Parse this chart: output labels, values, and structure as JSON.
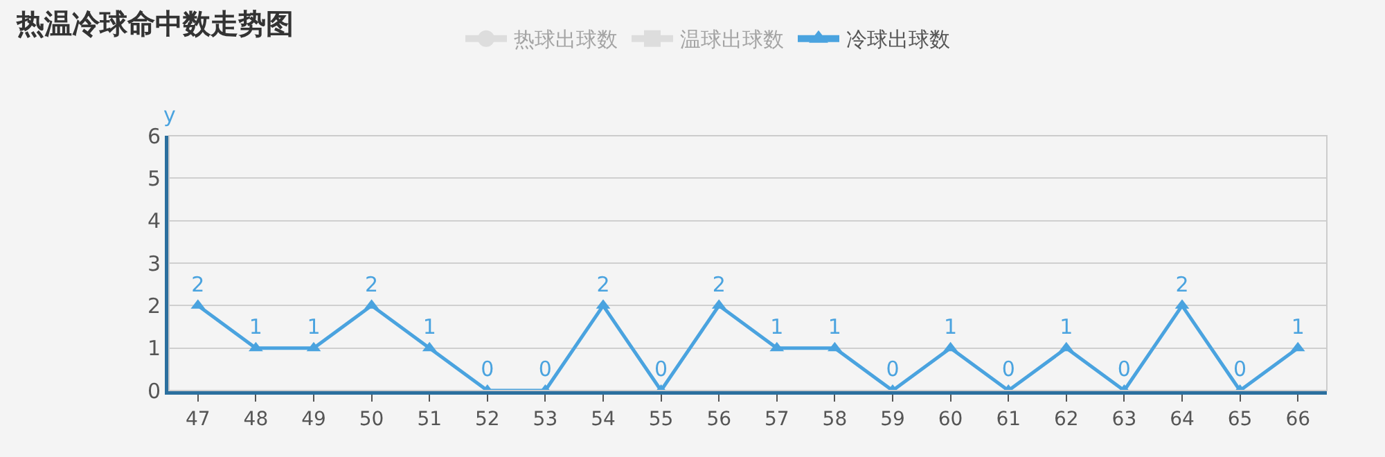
{
  "chart_data": {
    "type": "line",
    "title": "热温冷球命中数走势图",
    "ylabel": "y",
    "categories": [
      "47",
      "48",
      "49",
      "50",
      "51",
      "52",
      "53",
      "54",
      "55",
      "56",
      "57",
      "58",
      "59",
      "60",
      "61",
      "62",
      "63",
      "64",
      "65",
      "66"
    ],
    "series": [
      {
        "name": "热球出球数",
        "color": "#c8c8c8",
        "marker": "circle",
        "values": [
          null,
          null,
          null,
          null,
          null,
          null,
          null,
          null,
          null,
          null,
          null,
          null,
          null,
          null,
          null,
          null,
          null,
          null,
          null,
          null
        ]
      },
      {
        "name": "温球出球数",
        "color": "#c8c8c8",
        "marker": "square",
        "values": [
          null,
          null,
          null,
          null,
          null,
          null,
          null,
          null,
          null,
          null,
          null,
          null,
          null,
          null,
          null,
          null,
          null,
          null,
          null,
          null
        ]
      },
      {
        "name": "冷球出球数",
        "color": "#4aa3df",
        "marker": "triangle",
        "values": [
          2,
          1,
          1,
          2,
          1,
          0,
          0,
          2,
          0,
          2,
          1,
          1,
          0,
          1,
          0,
          1,
          0,
          2,
          0,
          1
        ]
      }
    ],
    "ylim": [
      0,
      6
    ],
    "yticks": [
      0,
      1,
      2,
      3,
      4,
      5,
      6
    ],
    "grid": "y",
    "legend": "top",
    "data_labels": true
  }
}
